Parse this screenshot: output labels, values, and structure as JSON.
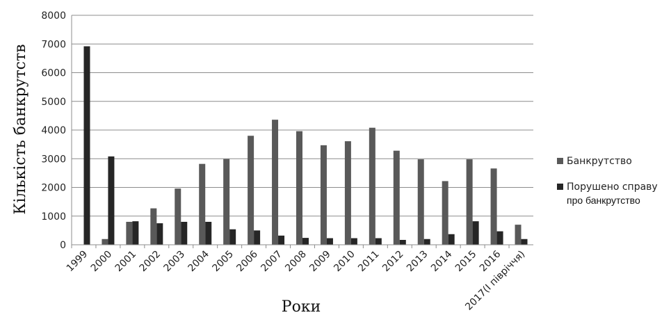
{
  "chart_data": {
    "type": "bar",
    "categories": [
      "1999",
      "2000",
      "2001",
      "2002",
      "2003",
      "2004",
      "2005",
      "2006",
      "2007",
      "2008",
      "2009",
      "2010",
      "2011",
      "2012",
      "2013",
      "2014",
      "2015",
      "2016",
      "2017(І півріччя)"
    ],
    "series": [
      {
        "name": "Банкрутство",
        "color": "#595959",
        "values": [
          0,
          200,
          800,
          1270,
          1960,
          2820,
          2990,
          3800,
          4360,
          3960,
          3470,
          3610,
          4080,
          3280,
          2980,
          2220,
          2980,
          2660,
          700
        ]
      },
      {
        "name_lines": [
          "Порушено справу",
          "про банкрутство"
        ],
        "color": "#262626",
        "values": [
          6920,
          3080,
          820,
          750,
          800,
          800,
          540,
          500,
          320,
          240,
          230,
          230,
          230,
          170,
          200,
          370,
          820,
          470,
          200
        ]
      }
    ],
    "ylabel": "Кількість банкрутств",
    "xlabel": "Роки",
    "ylim": [
      0,
      8000
    ],
    "yticks": [
      0,
      1000,
      2000,
      3000,
      4000,
      5000,
      6000,
      7000,
      8000
    ],
    "grid": true,
    "legend_position": "right"
  }
}
